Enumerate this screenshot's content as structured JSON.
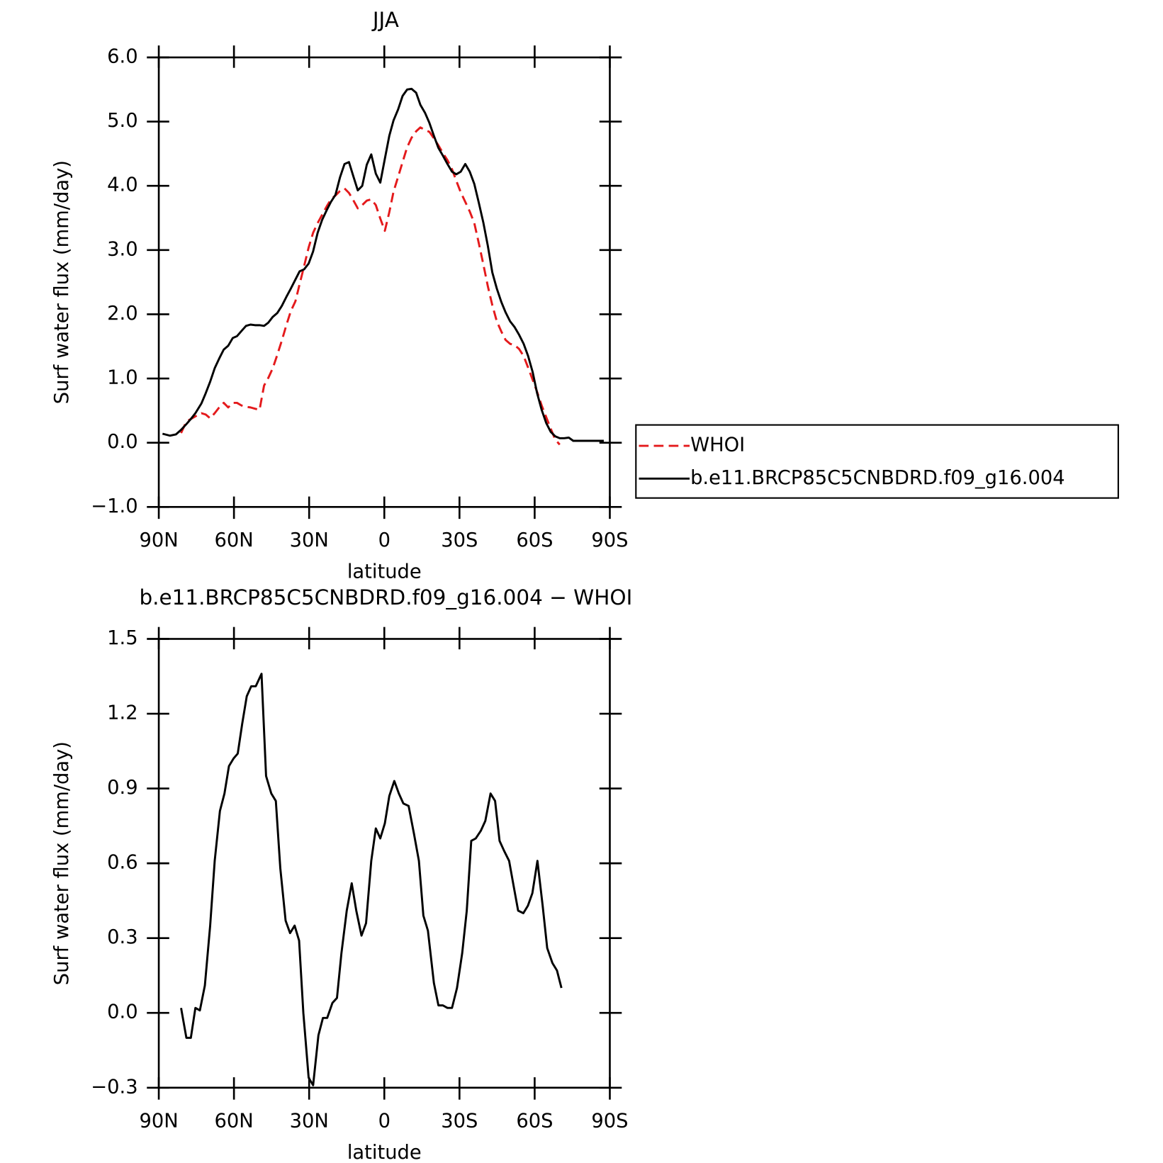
{
  "chart_data": [
    {
      "type": "line",
      "title": "JJA",
      "xlabel": "latitude",
      "ylabel": "Surf water flux (mm/day)",
      "xlim": [
        90,
        -90
      ],
      "xticks": [
        {
          "value": 90,
          "label": "90N"
        },
        {
          "value": 60,
          "label": "60N"
        },
        {
          "value": 30,
          "label": "30N"
        },
        0,
        {
          "value": -30,
          "label": "30S"
        },
        {
          "value": -60,
          "label": "60S"
        },
        {
          "value": -90,
          "label": "90S"
        }
      ],
      "ylim": [
        -1,
        6
      ],
      "yticks": [
        {
          "value": 6,
          "label": "6.0"
        },
        {
          "value": 5,
          "label": "5.0"
        },
        {
          "value": 4,
          "label": "4.0"
        },
        {
          "value": 3,
          "label": "3.0"
        },
        {
          "value": 2,
          "label": "2.0"
        },
        {
          "value": 1,
          "label": "1.0"
        },
        {
          "value": 0,
          "label": "0.0"
        },
        {
          "value": -1,
          "label": "−1.0"
        }
      ],
      "x": [
        88.5,
        85.5,
        83.2,
        81.1,
        79.0,
        77.2,
        75.4,
        73.0,
        71.3,
        69.5,
        67.7,
        65.9,
        64.1,
        62.3,
        60.5,
        58.8,
        57.0,
        55.2,
        53.4,
        51.6,
        49.8,
        48.0,
        46.3,
        44.5,
        42.7,
        40.9,
        39.1,
        37.3,
        35.5,
        33.8,
        32.0,
        30.2,
        28.4,
        26.6,
        24.8,
        23.0,
        21.3,
        19.5,
        17.7,
        15.9,
        14.1,
        12.3,
        10.6,
        8.8,
        7.0,
        5.2,
        3.4,
        1.6,
        -0.2,
        -2.0,
        -3.7,
        -5.5,
        -7.3,
        -9.1,
        -10.9,
        -12.7,
        -14.4,
        -16.2,
        -18.0,
        -19.8,
        -21.6,
        -23.4,
        -25.2,
        -27.0,
        -28.7,
        -30.5,
        -32.3,
        -34.1,
        -35.9,
        -37.7,
        -39.5,
        -41.3,
        -43.1,
        -44.9,
        -46.7,
        -48.4,
        -50.2,
        -52.0,
        -53.8,
        -55.6,
        -57.4,
        -59.2,
        -61.0,
        -62.8,
        -64.6,
        -66.4,
        -68.2,
        -70.0,
        -71.8,
        -73.6,
        -75.4,
        -77.2,
        -79.0,
        -80.8,
        -82.5,
        -84.9,
        -87.6
      ],
      "series": [
        {
          "name": "WHOI",
          "color": "#e41a1c",
          "line_style": "dashed",
          "values": [
            null,
            null,
            null,
            0.15,
            0.33,
            0.37,
            0.41,
            0.46,
            0.44,
            0.38,
            0.46,
            0.55,
            0.62,
            0.55,
            0.62,
            0.62,
            0.58,
            0.56,
            0.55,
            0.53,
            0.51,
            0.89,
            1.01,
            1.16,
            1.37,
            1.59,
            1.83,
            2.05,
            2.2,
            2.47,
            2.75,
            3.04,
            3.27,
            3.42,
            3.55,
            3.68,
            3.79,
            3.85,
            3.92,
            3.96,
            3.89,
            3.77,
            3.65,
            3.7,
            3.77,
            3.79,
            3.7,
            3.49,
            3.3,
            3.59,
            3.91,
            4.14,
            4.37,
            4.6,
            4.75,
            4.85,
            4.91,
            4.87,
            4.84,
            4.74,
            4.63,
            4.51,
            4.4,
            4.26,
            4.08,
            3.9,
            3.75,
            3.6,
            3.42,
            3.11,
            2.78,
            2.44,
            2.14,
            1.89,
            1.73,
            1.6,
            1.54,
            1.52,
            1.46,
            1.35,
            1.17,
            0.98,
            0.79,
            0.58,
            0.4,
            0.22,
            0.05,
            -0.03,
            null,
            null,
            null,
            null,
            null,
            null,
            null,
            null,
            null
          ]
        },
        {
          "name": "b.e11.BRCP85C5CNBDRD.f09_g16.004",
          "color": "#000000",
          "line_style": "solid",
          "values": [
            0.14,
            0.11,
            0.13,
            0.2,
            0.29,
            0.37,
            0.46,
            0.61,
            0.77,
            0.95,
            1.16,
            1.31,
            1.45,
            1.51,
            1.63,
            1.66,
            1.74,
            1.82,
            1.84,
            1.83,
            1.83,
            1.82,
            1.87,
            1.96,
            2.02,
            2.13,
            2.27,
            2.4,
            2.54,
            2.67,
            2.7,
            2.79,
            2.98,
            3.27,
            3.47,
            3.62,
            3.75,
            3.86,
            4.13,
            4.34,
            4.37,
            4.14,
            3.93,
            4.0,
            4.33,
            4.49,
            4.19,
            4.05,
            4.42,
            4.78,
            5.02,
            5.19,
            5.4,
            5.5,
            5.51,
            5.45,
            5.26,
            5.14,
            4.98,
            4.78,
            4.59,
            4.47,
            4.34,
            4.22,
            4.18,
            4.22,
            4.34,
            4.22,
            4.03,
            3.74,
            3.43,
            3.07,
            2.65,
            2.4,
            2.19,
            2.03,
            1.89,
            1.8,
            1.68,
            1.54,
            1.35,
            1.1,
            0.77,
            0.51,
            0.31,
            0.17,
            0.1,
            0.07,
            0.07,
            0.08,
            0.03,
            0.03,
            0.03,
            0.03,
            0.03,
            0.03,
            0.03
          ]
        }
      ]
    },
    {
      "type": "line",
      "title": "b.e11.BRCP85C5CNBDRD.f09_g16.004 − WHOI",
      "xlabel": "latitude",
      "ylabel": "Surf water flux (mm/day)",
      "xlim": [
        90,
        -90
      ],
      "xticks": [
        {
          "value": 90,
          "label": "90N"
        },
        {
          "value": 60,
          "label": "60N"
        },
        {
          "value": 30,
          "label": "30N"
        },
        0,
        {
          "value": -30,
          "label": "30S"
        },
        {
          "value": -60,
          "label": "60S"
        },
        {
          "value": -90,
          "label": "90S"
        }
      ],
      "ylim": [
        -0.3,
        1.5
      ],
      "yticks": [
        1.5,
        1.2,
        0.9,
        0.6,
        0.3,
        {
          "value": 0,
          "label": "0.0"
        },
        {
          "value": -0.3,
          "label": "−0.3"
        }
      ],
      "x": [
        81.1,
        79.0,
        77.2,
        75.4,
        73.6,
        71.6,
        69.5,
        67.7,
        65.6,
        63.8,
        62.0,
        60.2,
        58.5,
        56.7,
        54.9,
        53.1,
        51.3,
        49.0,
        47.2,
        45.1,
        43.3,
        41.5,
        39.4,
        37.6,
        35.8,
        34.0,
        32.3,
        30.2,
        28.4,
        26.3,
        24.5,
        22.8,
        20.7,
        18.9,
        17.1,
        15.0,
        13.0,
        11.2,
        9.1,
        7.3,
        5.2,
        3.4,
        1.6,
        -0.2,
        -2.0,
        -4.0,
        -5.8,
        -7.6,
        -9.7,
        -11.8,
        -13.8,
        -15.6,
        -17.4,
        -19.8,
        -21.6,
        -23.4,
        -25.2,
        -27.0,
        -29.0,
        -31.1,
        -32.9,
        -34.7,
        -36.5,
        -38.5,
        -40.3,
        -42.4,
        -44.2,
        -46.0,
        -47.8,
        -49.8,
        -51.6,
        -53.4,
        -55.5,
        -57.3,
        -59.1,
        -61.1,
        -63.2,
        -65.0,
        -67.1,
        -68.9,
        -70.7
      ],
      "series": [
        {
          "color": "#000000",
          "line_style": "solid",
          "values": [
            0.02,
            -0.1,
            -0.1,
            0.02,
            0.01,
            0.11,
            0.35,
            0.61,
            0.81,
            0.88,
            0.99,
            1.02,
            1.04,
            1.16,
            1.27,
            1.31,
            1.31,
            1.36,
            0.95,
            0.88,
            0.85,
            0.58,
            0.37,
            0.32,
            0.35,
            0.29,
            0,
            -0.26,
            -0.29,
            -0.09,
            -0.02,
            -0.02,
            0.04,
            0.06,
            0.24,
            0.41,
            0.52,
            0.41,
            0.31,
            0.36,
            0.61,
            0.74,
            0.7,
            0.76,
            0.87,
            0.93,
            0.88,
            0.84,
            0.83,
            0.72,
            0.61,
            0.39,
            0.33,
            0.12,
            0.03,
            0.03,
            0.02,
            0.02,
            0.1,
            0.24,
            0.41,
            0.69,
            0.7,
            0.73,
            0.77,
            0.88,
            0.85,
            0.69,
            0.65,
            0.61,
            0.51,
            0.41,
            0.4,
            0.43,
            0.48,
            0.61,
            0.43,
            0.26,
            0.2,
            0.17,
            0.1
          ]
        }
      ]
    }
  ]
}
